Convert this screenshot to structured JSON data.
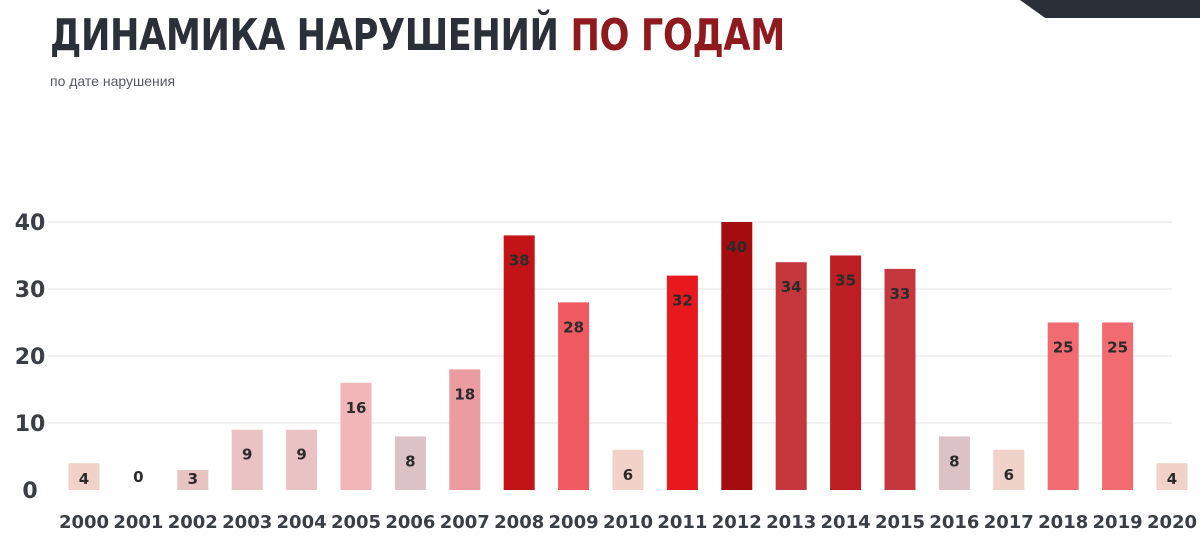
{
  "header": {
    "title_part1": "ДИНАМИКА НАРУШЕНИЙ",
    "title_part2": "ПО ГОДАМ",
    "subtitle": "по дате нарушения"
  },
  "chart_data": {
    "type": "bar",
    "title": "ДИНАМИКА НАРУШЕНИЙ ПО ГОДАМ",
    "subtitle": "по дате нарушения",
    "xlabel": "",
    "ylabel": "",
    "ylim": [
      0,
      40
    ],
    "yticks": [
      0,
      10,
      20,
      30,
      40
    ],
    "grid": true,
    "categories": [
      "2000",
      "2001",
      "2002",
      "2003",
      "2004",
      "2005",
      "2006",
      "2007",
      "2008",
      "2009",
      "2010",
      "2011",
      "2012",
      "2013",
      "2014",
      "2015",
      "2016",
      "2017",
      "2018",
      "2019",
      "2020"
    ],
    "values": [
      4,
      0,
      3,
      9,
      9,
      16,
      8,
      18,
      38,
      28,
      6,
      32,
      40,
      34,
      35,
      33,
      8,
      6,
      25,
      25,
      4
    ],
    "colors": [
      "#f1d2c9",
      "#f1d2c9",
      "#eac3c3",
      "#ebc2c4",
      "#ebc2c4",
      "#f2b6b8",
      "#dac2c6",
      "#ea9ca0",
      "#c21416",
      "#f05a60",
      "#f1d2c9",
      "#e8191e",
      "#a50c10",
      "#c4373c",
      "#bc1e22",
      "#c4373c",
      "#dac2c6",
      "#f1d2c9",
      "#f26b70",
      "#f26b70",
      "#f1d2c9"
    ]
  }
}
